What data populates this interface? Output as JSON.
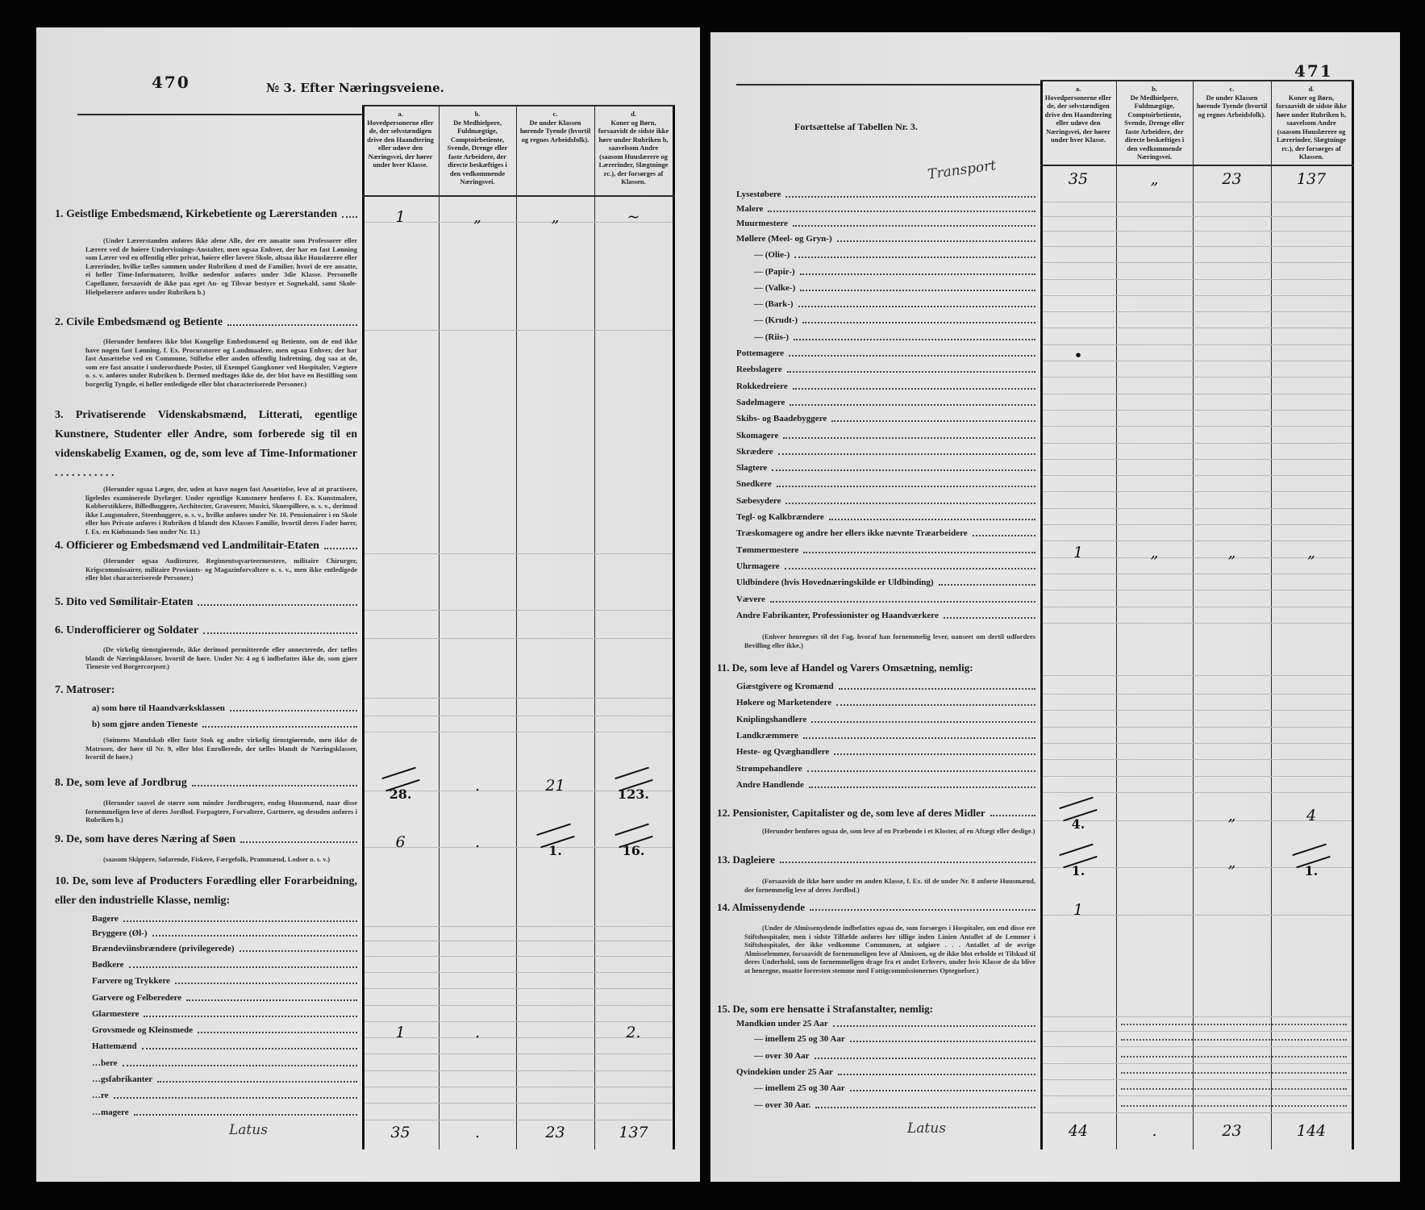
{
  "left": {
    "page_number": "470",
    "title": "№ 3. Efter Næringsveiene.",
    "column_headers": [
      {
        "letter": "a.",
        "text": "Hovedpersonerne eller de, der selvstændigen drive den Haandtering eller udøve den Næringsvei, der hører under hver Klasse."
      },
      {
        "letter": "b.",
        "text": "De Medhielpere, Fuldmægtige, Comptoirbetiente, Svende, Drenge eller faste Arbeidere, der directe beskæftiges i den vedkommende Næringsvei."
      },
      {
        "letter": "c.",
        "text": "De under Klassen hørende Tyende (hvortil og regnes Arbeidsfolk)."
      },
      {
        "letter": "d.",
        "text": "Koner og Børn, forsaavidt de sidste ikke høre under Rubriken b, saavelsom Andre (saasom Huuslærere og Lærerinder, Slægtninge rc.), der forsørges af Klassen."
      }
    ],
    "entries": [
      {
        "kind": "heading",
        "text": "1. Geistlige Embedsmænd, Kirkebetiente og Lærerstanden",
        "values": [
          "1",
          "„",
          "„",
          "~"
        ]
      },
      {
        "kind": "note",
        "text": "(Under Lærerstanden anføres ikke alene Alle, der ere ansatte som Professorer eller Lærere ved de høiere Undervisnings-Anstalter, men ogsaa Enhver, der har en fast Lønning som Lærer ved en offentlig eller privat, høiere eller lavere Skole, altsaa ikke Huuslærere eller Lærerinder, hvilke tælles sammen under Rubriken d med de Familier, hvori de ere ansatte, ei heller Time-Informatorer, hvilke nedenfor anføres under 3die Klasse. Personelle Capellaner, forsaavidt de ikke paa eget An- og Tilsvar bestyre et Sognekald, samt Skole-Hielpelærere anføres under Rubriken b.)"
      },
      {
        "kind": "heading",
        "text": "2. Civile Embedsmænd og Betiente"
      },
      {
        "kind": "note",
        "text": "(Herunder henføres ikke blot Kongelige Embedsmænd og Betiente, om de end ikke have nogen fast Lønning, f. Ex. Procuratorer og Landmaalere, men ogsaa Enhver, der har fast Ansættelse ved en Commune, Stiftelse eller anden offentlig Indretning, dog saa at de, som ere fast ansatte i underordnede Poster, til Exempel Gangkoner ved Hospitaler, Vægtere o. s. v. anføres under Rubriken b. Dermed medtages ikke de, der blot have en Bestilling som borgerlig Tyngde, ei heller entledigede eller blot characteriserede Personer.)"
      },
      {
        "kind": "multi",
        "text": "3. Privatiserende Videnskabsmænd, Litterati, egentlige Kunstnere, Studenter eller Andre, som forberede sig til en videnskabelig Examen, og de, som leve af Time-Informationer . . . . . . . . . . ."
      },
      {
        "kind": "note",
        "text": "(Herunder ogsaa Læger, der, uden at have nogen fast Ansættelse, leve af at practisere, ligeledes examinerede Dyrlæger. Under egentlige Kunstnere henføres f. Ex. Kunstmalere, Kobberstikkere, Billedhuggere, Architecter, Graveurer, Musici, Skuespillere, o. s. v., derimod ikke Laugsmalere, Steenhuggere, o. s. v., hvilke anføres under Nr. 10. Pensionairer i en Skole eller hos Private anføres i Rubriken d blandt den Klasses Familie, hvortil deres Fader hører, f. Ex. en Kiøbmands Søn under Nr. 11.)"
      },
      {
        "kind": "heading",
        "text": "4. Officierer og Embedsmænd ved Landmilitair-Etaten"
      },
      {
        "kind": "note",
        "text": "(Herunder ogsaa Auditeurer, Regimentsqvarteermestere, militaire Chirurger, Krigscommissairer, militaire Proviants- og Magazinforvaltere o. s. v., men ikke entledigede eller blot characteriserede Personer.)"
      },
      {
        "kind": "heading",
        "text": "5. Dito ved Sømilitair-Etaten"
      },
      {
        "kind": "heading",
        "text": "6. Underofficierer og Soldater"
      },
      {
        "kind": "note",
        "text": "(De virkelig tienstgiørende, ikke derimod permitterede eller annecterede, der tælles blandt de Næringsklasser, hvortil de høre. Under Nr. 4 og 6 indbefattes ikke de, som gjøre Tieneste ved Borgercorpser.)"
      },
      {
        "kind": "heading",
        "text": "7. Matroser:",
        "no_dots": true
      },
      {
        "kind": "item",
        "text": "a) som høre til Haandværksklassen"
      },
      {
        "kind": "item",
        "text": "b) som gjøre anden Tieneste"
      },
      {
        "kind": "note",
        "text": "(Søimens Mandskab eller faste Stok og andre virkelig tienstgiørende, men ikke de Matroser, der høre til Nr. 9, eller blot Enrollerede, der tælles blandt de Næringsklasser, hvortil de høre.)"
      },
      {
        "kind": "heading",
        "text": "8. De, som leve af Jordbrug",
        "values": [
          "28.",
          ".",
          "21",
          "123."
        ],
        "struck_over": [
          true,
          false,
          false,
          true
        ]
      },
      {
        "kind": "note",
        "text": "(Herunder saavel de større som mindre Jordbrugere, endog Huusmænd, naar disse fornemmeligen leve af deres Jordlod. Forpagtere, Forvaltere, Gartnere, og desuden anføres i Rubriken b.)"
      },
      {
        "kind": "heading",
        "text": "9. De, som have deres Næring af Søen",
        "values": [
          "6",
          ".",
          "1.",
          "16."
        ],
        "struck_over": [
          false,
          false,
          true,
          true
        ]
      },
      {
        "kind": "note",
        "text": "(saasom Skippere, Søfarende, Fiskere, Færgefolk, Prammænd, Lodser o. s. v.)"
      },
      {
        "kind": "multi",
        "text": "10. De, som leve af Producters Forædling eller Forarbeidning, eller den industrielle Klasse, nemlig:"
      },
      {
        "kind": "item",
        "text": "Bagere"
      },
      {
        "kind": "item",
        "text": "Bryggere (Øl-)"
      },
      {
        "kind": "item",
        "text": "Brændeviinsbrændere (privilegerede)"
      },
      {
        "kind": "item",
        "text": "Bødkere"
      },
      {
        "kind": "item",
        "text": "Farvere og Trykkere"
      },
      {
        "kind": "item",
        "text": "Garvere og Felberedere"
      },
      {
        "kind": "item",
        "text": "Glarmestere"
      },
      {
        "kind": "item",
        "text": "Grovsmede og Kleinsmede",
        "values": [
          "1",
          ".",
          "",
          "2."
        ]
      },
      {
        "kind": "item",
        "text": "Hattemænd"
      },
      {
        "kind": "item",
        "text": "…bere"
      },
      {
        "kind": "item",
        "text": "…gsfabrikanter"
      },
      {
        "kind": "item",
        "text": "…re"
      },
      {
        "kind": "item",
        "text": "…magere"
      }
    ],
    "footer": {
      "label": "Latus",
      "values": [
        "35",
        ".",
        "23",
        "137"
      ]
    }
  },
  "right": {
    "page_number": "471",
    "title": "Fortsættelse af Tabellen Nr. 3.",
    "column_headers": [
      {
        "letter": "a.",
        "text": "Hovedpersonerne eller de, der selvstændigen drive den Haandtering eller udøve den Næringsvei, der hører under hver Klasse."
      },
      {
        "letter": "b.",
        "text": "De Medhielpere, Fuldmægtige, Comptoirbetiente, Svende, Drenge eller faste Arbeidere, der directe beskæftiges i den vedkommende Næringsvei."
      },
      {
        "letter": "c.",
        "text": "De under Klassen hørende Tyende (hvortil og regnes Arbeidsfolk)."
      },
      {
        "letter": "d.",
        "text": "Koner og Børn, forsaavidt de sidste ikke høre under Rubriken b, saavelsom Andre (saasom Huuslærere og Lærerinder, Slægtninge rc.), der forsørges af Klassen."
      }
    ],
    "transport": {
      "label": "Transport",
      "values": [
        "35",
        "„",
        "23",
        "137"
      ]
    },
    "entries": [
      {
        "kind": "item",
        "text": "Lysestøbere"
      },
      {
        "kind": "item",
        "text": "Malere"
      },
      {
        "kind": "item",
        "text": "Muurmestere"
      },
      {
        "kind": "item",
        "text": "Møllere (Meel- og Gryn-)"
      },
      {
        "kind": "item",
        "text": "—    (Olie-)",
        "indent": true
      },
      {
        "kind": "item",
        "text": "—    (Papir-)",
        "indent": true
      },
      {
        "kind": "item",
        "text": "—    (Valke-)",
        "indent": true
      },
      {
        "kind": "item",
        "text": "—    (Bark-)",
        "indent": true
      },
      {
        "kind": "item",
        "text": "—    (Krudt-)",
        "indent": true
      },
      {
        "kind": "item",
        "text": "—    (Riis-)",
        "indent": true
      },
      {
        "kind": "item",
        "text": "Pottemagere",
        "values": [
          "•",
          "",
          "",
          ""
        ]
      },
      {
        "kind": "item",
        "text": "Reebslagere"
      },
      {
        "kind": "item",
        "text": "Rokkedreiere"
      },
      {
        "kind": "item",
        "text": "Sadelmagere"
      },
      {
        "kind": "item",
        "text": "Skibs- og Baadebyggere"
      },
      {
        "kind": "item",
        "text": "Skomagere"
      },
      {
        "kind": "item",
        "text": "Skrædere"
      },
      {
        "kind": "item",
        "text": "Slagtere"
      },
      {
        "kind": "item",
        "text": "Snedkere"
      },
      {
        "kind": "item",
        "text": "Sæbesydere"
      },
      {
        "kind": "item",
        "text": "Tegl- og Kalkbrændere"
      },
      {
        "kind": "item",
        "text": "Træskomagere og andre her ellers ikke nævnte Træarbeidere"
      },
      {
        "kind": "item",
        "text": "Tømmermestere",
        "values": [
          "1",
          "„",
          "„",
          "„"
        ]
      },
      {
        "kind": "item",
        "text": "Uhrmagere"
      },
      {
        "kind": "item",
        "text": "Uldbindere (hvis Hovednæringskilde er Uldbinding)"
      },
      {
        "kind": "item",
        "text": "Vævere"
      },
      {
        "kind": "item",
        "text": "Andre Fabrikanter, Professionister og Haandværkere"
      },
      {
        "kind": "note",
        "text": "(Enhver henregnes til det Fag, hvoraf han fornemmelig lever, uanseet om dertil udfordres Bevilling eller ikke.)"
      },
      {
        "kind": "heading",
        "text": "11. De, som leve af Handel og Varers Omsætning, nemlig:",
        "no_dots": true
      },
      {
        "kind": "item",
        "text": "Giæstgivere og Kromænd"
      },
      {
        "kind": "item",
        "text": "Høkere og Marketendere"
      },
      {
        "kind": "item",
        "text": "Kniplingshandlere"
      },
      {
        "kind": "item",
        "text": "Landkræmmere"
      },
      {
        "kind": "item",
        "text": "Heste- og Qvæghandlere"
      },
      {
        "kind": "item",
        "text": "Strømpehandlere"
      },
      {
        "kind": "item",
        "text": "Andre Handlende"
      },
      {
        "kind": "heading",
        "text": "12. Pensionister, Capitalister og de, som leve af deres Midler",
        "values": [
          "4.",
          "",
          "„",
          "4"
        ],
        "struck_over": [
          true,
          false,
          false,
          false
        ]
      },
      {
        "kind": "note",
        "text": "(Herunder henføres ogsaa de, som leve af en Præbende i et Kloster, af en Aftægt eller deslige.)"
      },
      {
        "kind": "heading",
        "text": "13. Dagleiere",
        "values": [
          "1.",
          "",
          "„",
          "1."
        ],
        "struck_over": [
          true,
          false,
          false,
          true
        ]
      },
      {
        "kind": "note",
        "text": "(Forsaavidt de ikke høre under en anden Klasse, f. Ex. til de under Nr. 8 anførte Huusmænd, der fornemmelig leve af deres Jordlod.)"
      },
      {
        "kind": "heading",
        "text": "14. Almissenydende",
        "values": [
          "1",
          "",
          "",
          ""
        ]
      },
      {
        "kind": "note",
        "text": "(Under de Almissenydende indbefattes ogsaa de, som forsørges i Hospitaler, om end disse ere Stiftshospitaler, men i sidste Tilfælde anføres her tillige inden Linien Antallet af de Lemmer i Stiftshospitalet, der ikke vedkomme Communen, at udgiøre . . . Antallet af de øvrige Almisselemmer, forsaavidt de fornemmeligen leve af Almissen, og de ikke blot erholde et Tilskud til deres Underhold, som de fornemmeligen drage fra et andet Erhverv, under hvis Klasse de da blive at henregne, maatte forresten stemme med Fattigcommissionernes Optegnelser.)"
      },
      {
        "kind": "heading",
        "text": "15. De, som ere hensatte i Strafanstalter, nemlig:",
        "no_dots": true
      },
      {
        "kind": "item",
        "text": "Mandkiøn under 25 Aar",
        "dotted_cols": true
      },
      {
        "kind": "item",
        "text": "—      imellem 25 og 30 Aar",
        "indent": true,
        "dotted_cols": true
      },
      {
        "kind": "item",
        "text": "—      over 30 Aar",
        "indent": true,
        "dotted_cols": true
      },
      {
        "kind": "item",
        "text": "Qvindekiøn under 25 Aar",
        "dotted_cols": true
      },
      {
        "kind": "item",
        "text": "—      imellem 25 og 30 Aar",
        "indent": true,
        "dotted_cols": true
      },
      {
        "kind": "item",
        "text": "—      over 30 Aar.",
        "indent": true,
        "dotted_cols": true
      }
    ],
    "footer": {
      "label": "Latus",
      "values": [
        "44",
        ".",
        "23",
        "144"
      ]
    }
  }
}
